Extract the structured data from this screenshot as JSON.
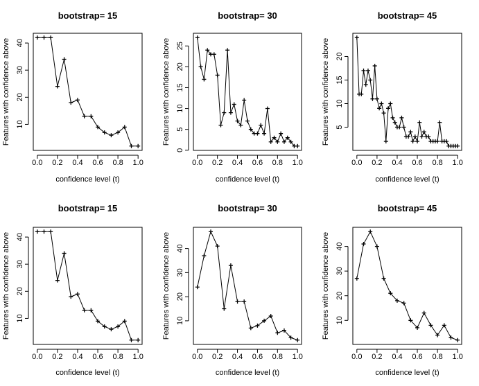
{
  "chart_data": [
    {
      "type": "line",
      "title": "bootstrap= 15",
      "xlabel": "confidence level (t)",
      "ylabel": "Features with confidence above",
      "xlim": [
        0,
        1
      ],
      "xticks": [
        "0.0",
        "0.2",
        "0.4",
        "0.6",
        "0.8",
        "1.0"
      ],
      "yticks": [
        10,
        20,
        30,
        40
      ],
      "values": [
        42,
        42,
        42,
        24,
        34,
        18,
        19,
        13,
        13,
        9,
        7,
        6,
        7,
        9,
        2,
        2
      ]
    },
    {
      "type": "line",
      "title": "bootstrap= 30",
      "xlabel": "confidence level (t)",
      "ylabel": "Features with confidence above",
      "xlim": [
        0,
        1
      ],
      "xticks": [
        "0.0",
        "0.2",
        "0.4",
        "0.6",
        "0.8",
        "1.0"
      ],
      "yticks": [
        0,
        5,
        10,
        15,
        20,
        25
      ],
      "values": [
        27,
        20,
        17,
        24,
        23,
        23,
        18,
        6,
        9,
        24,
        9,
        11,
        7,
        6,
        12,
        7,
        5,
        4,
        4,
        6,
        4,
        10,
        2,
        3,
        2,
        4,
        2,
        3,
        2,
        1,
        1
      ]
    },
    {
      "type": "line",
      "title": "bootstrap= 45",
      "xlabel": "confidence level (t)",
      "ylabel": "Features with confidence above",
      "xlim": [
        0,
        1
      ],
      "xticks": [
        "0.0",
        "0.2",
        "0.4",
        "0.6",
        "0.8",
        "1.0"
      ],
      "yticks": [
        5,
        10,
        15,
        20
      ],
      "values": [
        24,
        12,
        12,
        17,
        14,
        17,
        15,
        11,
        18,
        11,
        9,
        10,
        8,
        2,
        9,
        10,
        7,
        6,
        5,
        5,
        7,
        5,
        3,
        3,
        4,
        2,
        3,
        2,
        6,
        3,
        4,
        3,
        3,
        2,
        2,
        2,
        2,
        6,
        2,
        2,
        2,
        1,
        1,
        1,
        1,
        1
      ]
    },
    {
      "type": "line",
      "title": "bootstrap= 15",
      "xlabel": "confidence level (t)",
      "ylabel": "Features with confidence above",
      "xlim": [
        0,
        1
      ],
      "xticks": [
        "0.0",
        "0.2",
        "0.4",
        "0.6",
        "0.8",
        "1.0"
      ],
      "yticks": [
        10,
        20,
        30,
        40
      ],
      "values": [
        42,
        42,
        42,
        24,
        34,
        18,
        19,
        13,
        13,
        9,
        7,
        6,
        7,
        9,
        2,
        2
      ]
    },
    {
      "type": "line",
      "title": "bootstrap= 30",
      "xlabel": "confidence level (t)",
      "ylabel": "Features with confidence above",
      "xlim": [
        0,
        1
      ],
      "xticks": [
        "0.0",
        "0.2",
        "0.4",
        "0.6",
        "0.8",
        "1.0"
      ],
      "yticks": [
        10,
        20,
        30,
        40
      ],
      "values": [
        24,
        37,
        47,
        41,
        15,
        33,
        18,
        18,
        7,
        8,
        10,
        12,
        5,
        6,
        3,
        2
      ]
    },
    {
      "type": "line",
      "title": "bootstrap= 45",
      "xlabel": "confidence level (t)",
      "ylabel": "Features with confidence above",
      "xlim": [
        0,
        1
      ],
      "xticks": [
        "0.0",
        "0.2",
        "0.4",
        "0.6",
        "0.8",
        "1.0"
      ],
      "yticks": [
        10,
        20,
        30,
        40
      ],
      "values": [
        27,
        41,
        46,
        40,
        27,
        21,
        18,
        17,
        10,
        7,
        13,
        8,
        4,
        8,
        3,
        2
      ]
    }
  ]
}
